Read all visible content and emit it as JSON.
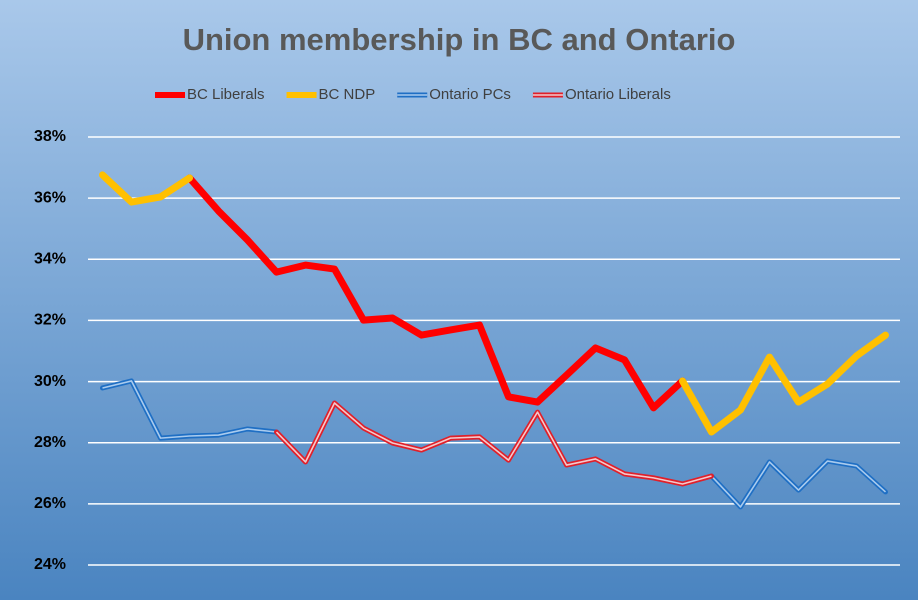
{
  "chart_data": {
    "type": "line",
    "title": "Union membership in BC and Ontario",
    "categories": [
      null,
      null,
      null,
      null,
      null,
      null,
      null,
      null,
      null,
      null,
      null,
      null,
      null,
      null,
      null,
      null,
      null,
      null,
      null,
      null,
      null,
      null,
      null,
      null,
      null,
      null,
      null,
      null
    ],
    "series": [
      {
        "name": "BC Liberals",
        "color": "#ff0000",
        "values": [
          null,
          null,
          null,
          36.66,
          35.58,
          34.63,
          33.58,
          33.81,
          33.68,
          32.01,
          32.08,
          31.52,
          31.69,
          31.85,
          29.5,
          29.33,
          30.21,
          31.1,
          30.71,
          29.14,
          30.02,
          null,
          null,
          null,
          null,
          null,
          null,
          null
        ]
      },
      {
        "name": "BC NDP",
        "color": "#ffc000",
        "values": [
          36.76,
          35.87,
          36.04,
          36.66,
          null,
          null,
          null,
          null,
          null,
          null,
          null,
          null,
          null,
          null,
          null,
          null,
          null,
          null,
          null,
          null,
          30.02,
          28.35,
          29.07,
          30.8,
          29.33,
          29.92,
          30.84,
          31.52
        ]
      },
      {
        "name": "Ontario PCs",
        "color": "#1f6fc4",
        "inner_color": "#a9cbee",
        "values": [
          29.79,
          30.02,
          28.15,
          28.22,
          28.25,
          28.45,
          28.35,
          null,
          null,
          null,
          null,
          null,
          null,
          null,
          null,
          null,
          null,
          null,
          null,
          null,
          null,
          26.91,
          25.9,
          27.37,
          26.45,
          27.4,
          27.24,
          26.39
        ]
      },
      {
        "name": "Ontario Liberals",
        "color": "#e0202a",
        "inner_color": "#f4c9cc",
        "values": [
          null,
          null,
          null,
          null,
          null,
          null,
          28.35,
          27.37,
          29.3,
          28.48,
          27.99,
          27.76,
          28.15,
          28.19,
          27.43,
          29.0,
          27.27,
          27.47,
          26.98,
          26.85,
          26.65,
          26.91,
          null,
          null,
          null,
          null,
          null,
          null
        ]
      }
    ],
    "ylim": [
      24,
      38
    ],
    "yticks": [
      {
        "value": 24,
        "label": "24%"
      },
      {
        "value": 26,
        "label": "26%"
      },
      {
        "value": 28,
        "label": "28%"
      },
      {
        "value": 30,
        "label": "30%"
      },
      {
        "value": 32,
        "label": "32%"
      },
      {
        "value": 34,
        "label": "34%"
      },
      {
        "value": 36,
        "label": "36%"
      },
      {
        "value": 38,
        "label": "38%"
      }
    ],
    "grid": true,
    "legend": "top"
  }
}
